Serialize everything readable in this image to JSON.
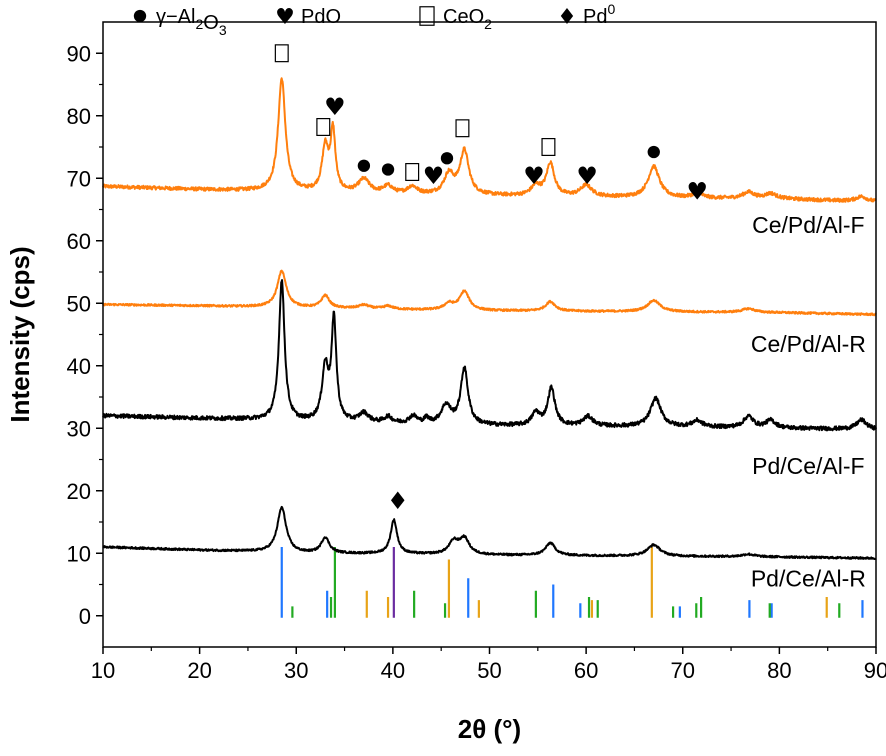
{
  "chart_data": {
    "type": "line",
    "xlabel": "2θ (°)",
    "ylabel": "Intensity (cps)",
    "xlim": [
      10,
      90
    ],
    "ylim": [
      -5,
      95
    ],
    "xticks": [
      10,
      20,
      30,
      40,
      50,
      60,
      70,
      80,
      90
    ],
    "yticks": [
      0,
      10,
      20,
      30,
      40,
      50,
      60,
      70,
      80,
      90
    ],
    "grid": false,
    "legend_position": "top",
    "legend": [
      {
        "symbol": "●",
        "label": "γ−Al2O3"
      },
      {
        "symbol": "♥",
        "label": "PdO"
      },
      {
        "symbol": "□",
        "label": "CeO2"
      },
      {
        "symbol": "♦",
        "label": "Pd0"
      }
    ],
    "colors": {
      "orange": "#ff7f0e",
      "black": "#000000",
      "ref_blue": "#1f77ff",
      "ref_green": "#22aa22",
      "ref_gold": "#e8a317",
      "ref_purple": "#6a2ca0"
    },
    "series": [
      {
        "name": "Ce/Pd/Al-F",
        "color": "#ff7f0e",
        "baseline": [
          [
            10,
            68.7
          ],
          [
            20,
            68.2
          ],
          [
            25,
            68.0
          ],
          [
            30,
            67.8
          ],
          [
            40,
            67.4
          ],
          [
            50,
            67.2
          ],
          [
            60,
            67.0
          ],
          [
            70,
            66.8
          ],
          [
            80,
            66.7
          ],
          [
            90,
            66.2
          ]
        ],
        "peaks": [
          [
            28.5,
            18.0,
            0.45
          ],
          [
            33.0,
            7.0,
            0.4
          ],
          [
            33.8,
            9.5,
            0.3
          ],
          [
            37.0,
            2.2,
            0.7
          ],
          [
            39.5,
            1.2,
            0.6
          ],
          [
            42.0,
            1.2,
            0.6
          ],
          [
            45.8,
            3.2,
            0.6
          ],
          [
            47.4,
            7.0,
            0.55
          ],
          [
            54.8,
            1.5,
            0.6
          ],
          [
            56.3,
            5.2,
            0.5
          ],
          [
            60.0,
            1.8,
            0.7
          ],
          [
            67.0,
            5.0,
            0.7
          ],
          [
            71.5,
            0.8,
            0.6
          ],
          [
            76.8,
            1.0,
            0.7
          ],
          [
            79.1,
            0.8,
            0.7
          ],
          [
            88.5,
            0.8,
            0.7
          ]
        ],
        "noise": 0.28
      },
      {
        "name": "Ce/Pd/Al-R",
        "color": "#ff7f0e",
        "baseline": [
          [
            10,
            49.8
          ],
          [
            20,
            49.6
          ],
          [
            30,
            49.3
          ],
          [
            40,
            49.0
          ],
          [
            50,
            48.8
          ],
          [
            60,
            48.7
          ],
          [
            70,
            48.6
          ],
          [
            80,
            48.5
          ],
          [
            90,
            48.2
          ]
        ],
        "peaks": [
          [
            28.5,
            5.8,
            0.55
          ],
          [
            33.0,
            2.0,
            0.5
          ],
          [
            37.0,
            0.6,
            0.7
          ],
          [
            39.5,
            0.5,
            0.6
          ],
          [
            45.8,
            1.0,
            0.6
          ],
          [
            47.4,
            3.0,
            0.6
          ],
          [
            56.3,
            1.5,
            0.6
          ],
          [
            67.0,
            1.8,
            0.8
          ],
          [
            76.8,
            0.6,
            0.8
          ]
        ],
        "noise": 0.15
      },
      {
        "name": "Pd/Ce/Al-F",
        "color": "#000000",
        "baseline": [
          [
            10,
            32.0
          ],
          [
            20,
            31.6
          ],
          [
            25,
            31.4
          ],
          [
            30,
            31.0
          ],
          [
            40,
            30.7
          ],
          [
            50,
            30.4
          ],
          [
            60,
            30.3
          ],
          [
            70,
            30.2
          ],
          [
            80,
            30.0
          ],
          [
            90,
            29.8
          ]
        ],
        "peaks": [
          [
            28.5,
            22.5,
            0.35
          ],
          [
            33.0,
            8.5,
            0.4
          ],
          [
            33.9,
            16.0,
            0.3
          ],
          [
            37.0,
            1.5,
            0.6
          ],
          [
            39.5,
            1.0,
            0.5
          ],
          [
            42.1,
            1.2,
            0.5
          ],
          [
            43.5,
            0.8,
            0.3
          ],
          [
            45.5,
            3.0,
            0.6
          ],
          [
            47.4,
            9.0,
            0.45
          ],
          [
            54.8,
            2.0,
            0.5
          ],
          [
            56.4,
            6.0,
            0.45
          ],
          [
            60.2,
            1.5,
            0.6
          ],
          [
            67.2,
            4.5,
            0.65
          ],
          [
            71.5,
            1.0,
            0.6
          ],
          [
            76.8,
            1.8,
            0.6
          ],
          [
            79.1,
            1.2,
            0.6
          ],
          [
            88.5,
            1.5,
            0.6
          ]
        ],
        "noise": 0.32
      },
      {
        "name": "Pd/Ce/Al-R",
        "color": "#000000",
        "baseline": [
          [
            10,
            11.0
          ],
          [
            20,
            10.5
          ],
          [
            25,
            10.3
          ],
          [
            30,
            10.0
          ],
          [
            40,
            9.9
          ],
          [
            50,
            9.7
          ],
          [
            60,
            9.6
          ],
          [
            70,
            9.5
          ],
          [
            80,
            9.4
          ],
          [
            90,
            9.2
          ]
        ],
        "peaks": [
          [
            28.5,
            7.2,
            0.55
          ],
          [
            33.0,
            2.5,
            0.5
          ],
          [
            40.1,
            5.4,
            0.4
          ],
          [
            46.3,
            2.0,
            0.6
          ],
          [
            47.4,
            2.5,
            0.6
          ],
          [
            56.3,
            2.0,
            0.6
          ],
          [
            67.0,
            1.8,
            0.8
          ],
          [
            76.8,
            0.4,
            0.8
          ]
        ],
        "noise": 0.15
      }
    ],
    "sample_labels": [
      {
        "text": "Ce/Pd/Al-F",
        "x": 83.0,
        "y": 62.5
      },
      {
        "text": "Ce/Pd/Al-R",
        "x": 83.0,
        "y": 43.5
      },
      {
        "text": "Pd/Ce/Al-F",
        "x": 83.0,
        "y": 24.0
      },
      {
        "text": "Pd/Ce/Al-R",
        "x": 83.0,
        "y": 6.0
      }
    ],
    "reference_lines": [
      {
        "color": "#1f77ff",
        "lines": [
          [
            28.5,
            11
          ],
          [
            33.2,
            4
          ],
          [
            47.8,
            6
          ],
          [
            56.6,
            5
          ],
          [
            59.4,
            2
          ],
          [
            69.7,
            1.5
          ],
          [
            76.9,
            2.5
          ],
          [
            79.2,
            2
          ],
          [
            88.6,
            2.5
          ]
        ]
      },
      {
        "color": "#22aa22",
        "lines": [
          [
            29.6,
            1.5
          ],
          [
            33.6,
            3
          ],
          [
            34.0,
            11
          ],
          [
            42.2,
            4
          ],
          [
            45.4,
            2
          ],
          [
            54.8,
            4
          ],
          [
            60.3,
            3
          ],
          [
            61.2,
            2.5
          ],
          [
            69.0,
            1.5
          ],
          [
            71.4,
            2
          ],
          [
            71.9,
            3
          ],
          [
            79.0,
            2
          ],
          [
            86.2,
            2
          ]
        ]
      },
      {
        "color": "#e8a317",
        "lines": [
          [
            37.3,
            4
          ],
          [
            39.5,
            3
          ],
          [
            45.8,
            9
          ],
          [
            48.9,
            2.5
          ],
          [
            60.6,
            2.5
          ],
          [
            66.8,
            11
          ],
          [
            84.9,
            3
          ]
        ]
      },
      {
        "color": "#6a2ca0",
        "lines": [
          [
            40.1,
            11
          ]
        ]
      }
    ],
    "annotations": [
      {
        "symbol": "□",
        "x": 28.5,
        "y": 90.0
      },
      {
        "symbol": "□",
        "x": 32.8,
        "y": 78.2
      },
      {
        "symbol": "♥",
        "x": 34.0,
        "y": 81.5
      },
      {
        "symbol": "●",
        "x": 37.0,
        "y": 72.0
      },
      {
        "symbol": "●",
        "x": 39.5,
        "y": 71.4
      },
      {
        "symbol": "□",
        "x": 42.0,
        "y": 71.0
      },
      {
        "symbol": "♥",
        "x": 44.2,
        "y": 70.5
      },
      {
        "symbol": "●",
        "x": 45.6,
        "y": 73.2
      },
      {
        "symbol": "□",
        "x": 47.2,
        "y": 78.0
      },
      {
        "symbol": "♥",
        "x": 54.6,
        "y": 70.5
      },
      {
        "symbol": "□",
        "x": 56.1,
        "y": 75.0
      },
      {
        "symbol": "♥",
        "x": 60.1,
        "y": 70.5
      },
      {
        "symbol": "●",
        "x": 67.0,
        "y": 74.2
      },
      {
        "symbol": "♥",
        "x": 71.5,
        "y": 68.0
      },
      {
        "symbol": "♦",
        "x": 40.5,
        "y": 18.5
      }
    ]
  }
}
